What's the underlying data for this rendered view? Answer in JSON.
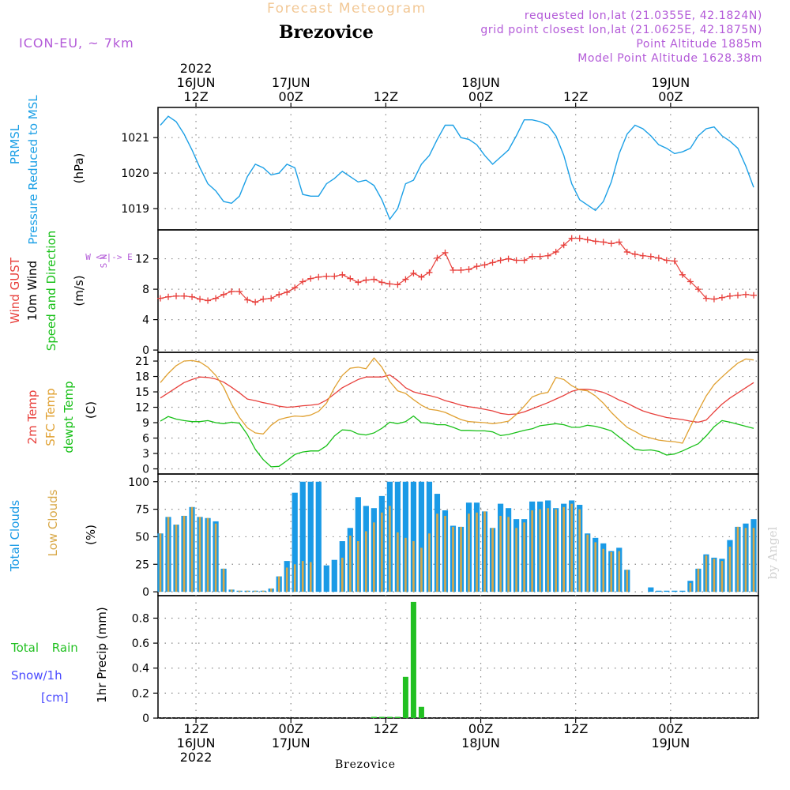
{
  "header": {
    "product": "Forecast Meteogram",
    "location": "Brezovice",
    "model": "ICON-EU, ~ 7km",
    "requested": "requested lon,lat (21.0355E, 42.1824N)",
    "gridpoint": "grid point closest lon,lat (21.0625E, 42.1875N)",
    "altitude": "Point Altitude 1885m",
    "model_altitude": "Model Point Altitude 1628.38m",
    "credit": "by Angel",
    "footer_location": "Brezovice"
  },
  "colors": {
    "pressure": "#1ca0e6",
    "gust": "#e8403c",
    "wind": "#000000",
    "t2m": "#e8403c",
    "tsfc": "#e0a030",
    "dewpt": "#18c018",
    "total_clouds": "#1a9ae6",
    "low_clouds": "#d8a848",
    "rain": "#22c022",
    "snow": "#4a4aff",
    "label_purple": "#b35ad8",
    "label_orange": "#f2c896",
    "grid": "#888888"
  },
  "time_axis": {
    "top_labels": [
      {
        "t": 0,
        "lines": [
          "2022",
          "16JUN",
          "12Z"
        ]
      },
      {
        "t": 12,
        "lines": [
          "",
          "17JUN",
          "00Z"
        ]
      },
      {
        "t": 24,
        "lines": [
          "",
          "",
          "12Z"
        ]
      },
      {
        "t": 36,
        "lines": [
          "",
          "18JUN",
          "00Z"
        ]
      },
      {
        "t": 48,
        "lines": [
          "",
          "",
          "12Z"
        ]
      },
      {
        "t": 60,
        "lines": [
          "",
          "19JUN",
          "00Z"
        ]
      }
    ],
    "bottom_labels": [
      {
        "t": 0,
        "lines": [
          "12Z",
          "16JUN",
          "2022"
        ]
      },
      {
        "t": 12,
        "lines": [
          "00Z",
          "17JUN",
          ""
        ]
      },
      {
        "t": 24,
        "lines": [
          "12Z",
          "",
          ""
        ]
      },
      {
        "t": 36,
        "lines": [
          "00Z",
          "18JUN",
          ""
        ]
      },
      {
        "t": 48,
        "lines": [
          "12Z",
          "",
          ""
        ]
      },
      {
        "t": 60,
        "lines": [
          "00Z",
          "19JUN",
          ""
        ]
      }
    ],
    "tmin": -4.8,
    "tmax": 71.1
  },
  "chart_data": [
    {
      "id": "pressure",
      "type": "line",
      "ylabel": [
        "PRMSL",
        "Pressure Reduced to MSL",
        "(hPa)"
      ],
      "yticks": [
        1019,
        1020,
        1021
      ],
      "ylim": [
        1018.4,
        1021.85
      ],
      "x": [
        -4.5,
        -3.5,
        -2.5,
        -1.5,
        -0.5,
        0.5,
        1.5,
        2.5,
        3.5,
        4.5,
        5.5,
        6.5,
        7.5,
        8.5,
        9.5,
        10.5,
        11.5,
        12.5,
        13.5,
        14.5,
        15.5,
        16.5,
        17.5,
        18.5,
        19.5,
        20.5,
        21.5,
        22.5,
        23.5,
        24.5,
        25.5,
        26.5,
        27.5,
        28.5,
        29.5,
        30.5,
        31.5,
        32.5,
        33.5,
        34.5,
        35.5,
        36.5,
        37.5,
        38.5,
        39.5,
        40.5,
        41.5,
        42.5,
        43.5,
        44.5,
        45.5,
        46.5,
        47.5,
        48.5,
        49.5,
        50.5,
        51.5,
        52.5,
        53.5,
        54.5,
        55.5,
        56.5,
        57.5,
        58.5,
        59.5,
        60.5,
        61.5,
        62.5,
        63.5,
        64.5,
        65.5,
        66.5,
        67.5,
        68.5,
        69.5,
        70.5
      ],
      "values": [
        1021.35,
        1021.6,
        1021.45,
        1021.1,
        1020.65,
        1020.15,
        1019.7,
        1019.5,
        1019.2,
        1019.15,
        1019.35,
        1019.9,
        1020.25,
        1020.15,
        1019.95,
        1020.0,
        1020.25,
        1020.15,
        1019.4,
        1019.35,
        1019.35,
        1019.7,
        1019.85,
        1020.05,
        1019.9,
        1019.75,
        1019.8,
        1019.65,
        1019.25,
        1018.7,
        1019.0,
        1019.7,
        1019.8,
        1020.25,
        1020.5,
        1020.95,
        1021.35,
        1021.35,
        1021.0,
        1020.95,
        1020.8,
        1020.5,
        1020.25,
        1020.45,
        1020.65,
        1021.05,
        1021.5,
        1021.5,
        1021.45,
        1021.35,
        1021.05,
        1020.5,
        1019.7,
        1019.25,
        1019.1,
        1018.95,
        1019.2,
        1019.75,
        1020.55,
        1021.1,
        1021.35,
        1021.25,
        1021.05,
        1020.8,
        1020.7,
        1020.55,
        1020.6,
        1020.7,
        1021.05,
        1021.25,
        1021.3,
        1021.05,
        1020.9,
        1020.7,
        1020.2,
        1019.6
      ]
    },
    {
      "id": "wind",
      "type": "line",
      "ylabel": [
        "Wind GUST",
        "10m Wind",
        "Speed and Direction",
        "(m/s)"
      ],
      "compass": [
        "N",
        "W <-|-> E",
        "S"
      ],
      "yticks": [
        0,
        4,
        8,
        12
      ],
      "ylim": [
        -0.3,
        15.8
      ],
      "x": [
        -4.5,
        -3.5,
        -2.5,
        -1.5,
        -0.5,
        0.5,
        1.5,
        2.5,
        3.5,
        4.5,
        5.5,
        6.5,
        7.5,
        8.5,
        9.5,
        10.5,
        11.5,
        12.5,
        13.5,
        14.5,
        15.5,
        16.5,
        17.5,
        18.5,
        19.5,
        20.5,
        21.5,
        22.5,
        23.5,
        24.5,
        25.5,
        26.5,
        27.5,
        28.5,
        29.5,
        30.5,
        31.5,
        32.5,
        33.5,
        34.5,
        35.5,
        36.5,
        37.5,
        38.5,
        39.5,
        40.5,
        41.5,
        42.5,
        43.5,
        44.5,
        45.5,
        46.5,
        47.5,
        48.5,
        49.5,
        50.5,
        51.5,
        52.5,
        53.5,
        54.5,
        55.5,
        56.5,
        57.5,
        58.5,
        59.5,
        60.5,
        61.5,
        62.5,
        63.5,
        64.5,
        65.5,
        66.5,
        67.5,
        68.5,
        69.5,
        70.5
      ],
      "gust": [
        6.8,
        7.0,
        7.1,
        7.1,
        7.0,
        6.7,
        6.5,
        6.8,
        7.3,
        7.7,
        7.7,
        6.6,
        6.3,
        6.7,
        6.8,
        7.3,
        7.6,
        8.2,
        9.0,
        9.4,
        9.6,
        9.7,
        9.7,
        9.9,
        9.4,
        8.9,
        9.2,
        9.3,
        8.9,
        8.7,
        8.6,
        9.3,
        10.1,
        9.6,
        10.2,
        12.1,
        12.8,
        10.5,
        10.5,
        10.6,
        11.0,
        11.2,
        11.5,
        11.8,
        12.0,
        11.8,
        11.8,
        12.3,
        12.3,
        12.4,
        12.9,
        13.8,
        14.7,
        14.7,
        14.5,
        14.3,
        14.2,
        14.0,
        14.2,
        12.9,
        12.6,
        12.4,
        12.3,
        12.1,
        11.8,
        11.7,
        9.9,
        9.0,
        8.0,
        6.8,
        6.7,
        6.9,
        7.1,
        7.2,
        7.3,
        7.2
      ]
    },
    {
      "id": "temperature",
      "type": "line",
      "ylabel": [
        "2m Temp",
        "SFC Temp",
        "dewpt Temp",
        "(C)"
      ],
      "yticks": [
        0,
        3,
        6,
        9,
        12,
        15,
        18,
        21
      ],
      "ylim": [
        -1,
        22.7
      ],
      "x": [
        -4.5,
        -3.5,
        -2.5,
        -1.5,
        -0.5,
        0.5,
        1.5,
        2.5,
        3.5,
        4.5,
        5.5,
        6.5,
        7.5,
        8.5,
        9.5,
        10.5,
        11.5,
        12.5,
        13.5,
        14.5,
        15.5,
        16.5,
        17.5,
        18.5,
        19.5,
        20.5,
        21.5,
        22.5,
        23.5,
        24.5,
        25.5,
        26.5,
        27.5,
        28.5,
        29.5,
        30.5,
        31.5,
        32.5,
        33.5,
        34.5,
        35.5,
        36.5,
        37.5,
        38.5,
        39.5,
        40.5,
        41.5,
        42.5,
        43.5,
        44.5,
        45.5,
        46.5,
        47.5,
        48.5,
        49.5,
        50.5,
        51.5,
        52.5,
        53.5,
        54.5,
        55.5,
        56.5,
        57.5,
        58.5,
        59.5,
        60.5,
        61.5,
        62.5,
        63.5,
        64.5,
        65.5,
        66.5,
        67.5,
        68.5,
        69.5,
        70.5
      ],
      "t2m": [
        13.8,
        14.8,
        15.8,
        16.8,
        17.4,
        17.9,
        17.8,
        17.5,
        16.9,
        15.9,
        14.8,
        13.6,
        13.3,
        12.9,
        12.6,
        12.2,
        12.0,
        12.1,
        12.3,
        12.4,
        12.6,
        13.4,
        14.6,
        15.8,
        16.6,
        17.4,
        17.9,
        17.9,
        17.9,
        18.3,
        17.2,
        15.8,
        15.0,
        14.6,
        14.3,
        13.9,
        13.3,
        12.9,
        12.4,
        12.1,
        11.9,
        11.6,
        11.3,
        10.8,
        10.6,
        10.7,
        11.1,
        11.7,
        12.3,
        12.9,
        13.6,
        14.3,
        15.1,
        15.5,
        15.5,
        15.3,
        14.9,
        14.2,
        13.4,
        12.8,
        12.0,
        11.3,
        10.8,
        10.4,
        10.0,
        9.8,
        9.6,
        9.3,
        9.1,
        9.5,
        11.1,
        12.6,
        13.8,
        14.8,
        15.8,
        16.8
      ],
      "tsfc": [
        16.8,
        18.6,
        20.1,
        21.0,
        21.1,
        20.8,
        19.8,
        18.2,
        15.9,
        12.6,
        10.0,
        8.0,
        7.0,
        6.8,
        8.5,
        9.6,
        10.0,
        10.3,
        10.2,
        10.5,
        11.2,
        12.8,
        15.8,
        18.2,
        19.6,
        19.8,
        19.5,
        21.6,
        19.8,
        17.0,
        15.2,
        14.7,
        13.5,
        12.4,
        11.6,
        11.4,
        11.0,
        10.3,
        9.6,
        9.2,
        9.1,
        9.0,
        8.8,
        9.0,
        9.3,
        10.6,
        12.2,
        14.0,
        14.6,
        14.9,
        17.8,
        17.4,
        16.2,
        15.4,
        15.2,
        14.2,
        12.8,
        11.0,
        9.5,
        8.1,
        7.3,
        6.4,
        6.0,
        5.6,
        5.4,
        5.3,
        5.0,
        8.2,
        11.3,
        14.2,
        16.4,
        17.9,
        19.3,
        20.6,
        21.4,
        21.2
      ],
      "dewpt": [
        9.3,
        10.2,
        9.7,
        9.4,
        9.2,
        9.2,
        9.4,
        9.0,
        8.8,
        9.1,
        8.9,
        6.7,
        3.8,
        1.8,
        0.4,
        0.5,
        1.6,
        2.8,
        3.3,
        3.5,
        3.5,
        4.5,
        6.4,
        7.6,
        7.5,
        6.8,
        6.6,
        7.0,
        7.9,
        9.1,
        8.8,
        9.2,
        10.3,
        9.0,
        8.9,
        8.6,
        8.6,
        8.1,
        7.5,
        7.5,
        7.4,
        7.4,
        7.2,
        6.5,
        6.7,
        7.1,
        7.5,
        7.8,
        8.4,
        8.6,
        8.8,
        8.6,
        8.1,
        8.1,
        8.5,
        8.3,
        7.9,
        7.4,
        6.2,
        5.0,
        3.8,
        3.6,
        3.7,
        3.4,
        2.7,
        2.9,
        3.5,
        4.2,
        4.9,
        6.4,
        8.2,
        9.4,
        9.1,
        8.7,
        8.3,
        7.9
      ]
    },
    {
      "id": "clouds",
      "type": "bar",
      "ylabel": [
        "Total Clouds",
        "Low Clouds",
        "(%)"
      ],
      "yticks": [
        0,
        25,
        50,
        75,
        100
      ],
      "ylim": [
        -3.5,
        107
      ],
      "x": [
        -4.5,
        -3.5,
        -2.5,
        -1.5,
        -0.5,
        0.5,
        1.5,
        2.5,
        3.5,
        4.5,
        5.5,
        6.5,
        7.5,
        8.5,
        9.5,
        10.5,
        11.5,
        12.5,
        13.5,
        14.5,
        15.5,
        16.5,
        17.5,
        18.5,
        19.5,
        20.5,
        21.5,
        22.5,
        23.5,
        24.5,
        25.5,
        26.5,
        27.5,
        28.5,
        29.5,
        30.5,
        31.5,
        32.5,
        33.5,
        34.5,
        35.5,
        36.5,
        37.5,
        38.5,
        39.5,
        40.5,
        41.5,
        42.5,
        43.5,
        44.5,
        45.5,
        46.5,
        47.5,
        48.5,
        49.5,
        50.5,
        51.5,
        52.5,
        53.5,
        54.5,
        55.5,
        56.5,
        57.5,
        58.5,
        59.5,
        60.5,
        61.5,
        62.5,
        63.5,
        64.5,
        65.5,
        66.5,
        67.5,
        68.5,
        69.5,
        70.5
      ],
      "total": [
        53,
        68,
        61,
        69,
        77,
        68,
        67,
        64,
        21,
        2,
        1,
        1,
        1,
        1,
        3,
        14,
        28,
        90,
        100,
        100,
        100,
        24,
        29,
        46,
        58,
        86,
        78,
        76,
        87,
        100,
        100,
        100,
        100,
        100,
        100,
        89,
        74,
        60,
        59,
        81,
        81,
        73,
        58,
        80,
        76,
        66,
        66,
        82,
        82,
        83,
        76,
        80,
        83,
        79,
        53,
        49,
        44,
        37,
        40,
        20,
        0,
        0,
        4,
        1,
        1,
        1,
        1,
        10,
        21,
        34,
        31,
        30,
        47,
        59,
        62,
        66
      ],
      "low": [
        53,
        68,
        61,
        69,
        77,
        68,
        67,
        62,
        21,
        2,
        1,
        1,
        1,
        1,
        3,
        14,
        22,
        25,
        28,
        27,
        0,
        0,
        0,
        31,
        51,
        46,
        55,
        63,
        72,
        78,
        54,
        49,
        46,
        40,
        53,
        71,
        69,
        59,
        59,
        71,
        72,
        73,
        58,
        69,
        68,
        58,
        63,
        74,
        75,
        76,
        75,
        77,
        80,
        75,
        52,
        45,
        39,
        36,
        37,
        20,
        0,
        0,
        0,
        0,
        0,
        0,
        0,
        8,
        21,
        33,
        30,
        28,
        41,
        59,
        58,
        58
      ]
    },
    {
      "id": "precip",
      "type": "bar",
      "ylabel": [
        "1hr Precip (mm)"
      ],
      "legend": [
        "Total Rain",
        "Snow/1h",
        "[cm]"
      ],
      "yticks": [
        0,
        0.2,
        0.4,
        0.6,
        0.8
      ],
      "yticklabels": [
        "0",
        "0.2",
        "0.4",
        "0.6",
        "0.8"
      ],
      "ylim": [
        0,
        0.98
      ],
      "x": [
        22.5,
        23.5,
        24.5,
        25.5,
        26.5,
        27.5,
        28.5,
        29.5
      ],
      "rain": [
        0.01,
        0.01,
        0.01,
        0.01,
        0.33,
        0.93,
        0.09,
        0.0
      ],
      "snow": [
        0,
        0,
        0,
        0,
        0,
        0,
        0,
        0
      ]
    }
  ]
}
